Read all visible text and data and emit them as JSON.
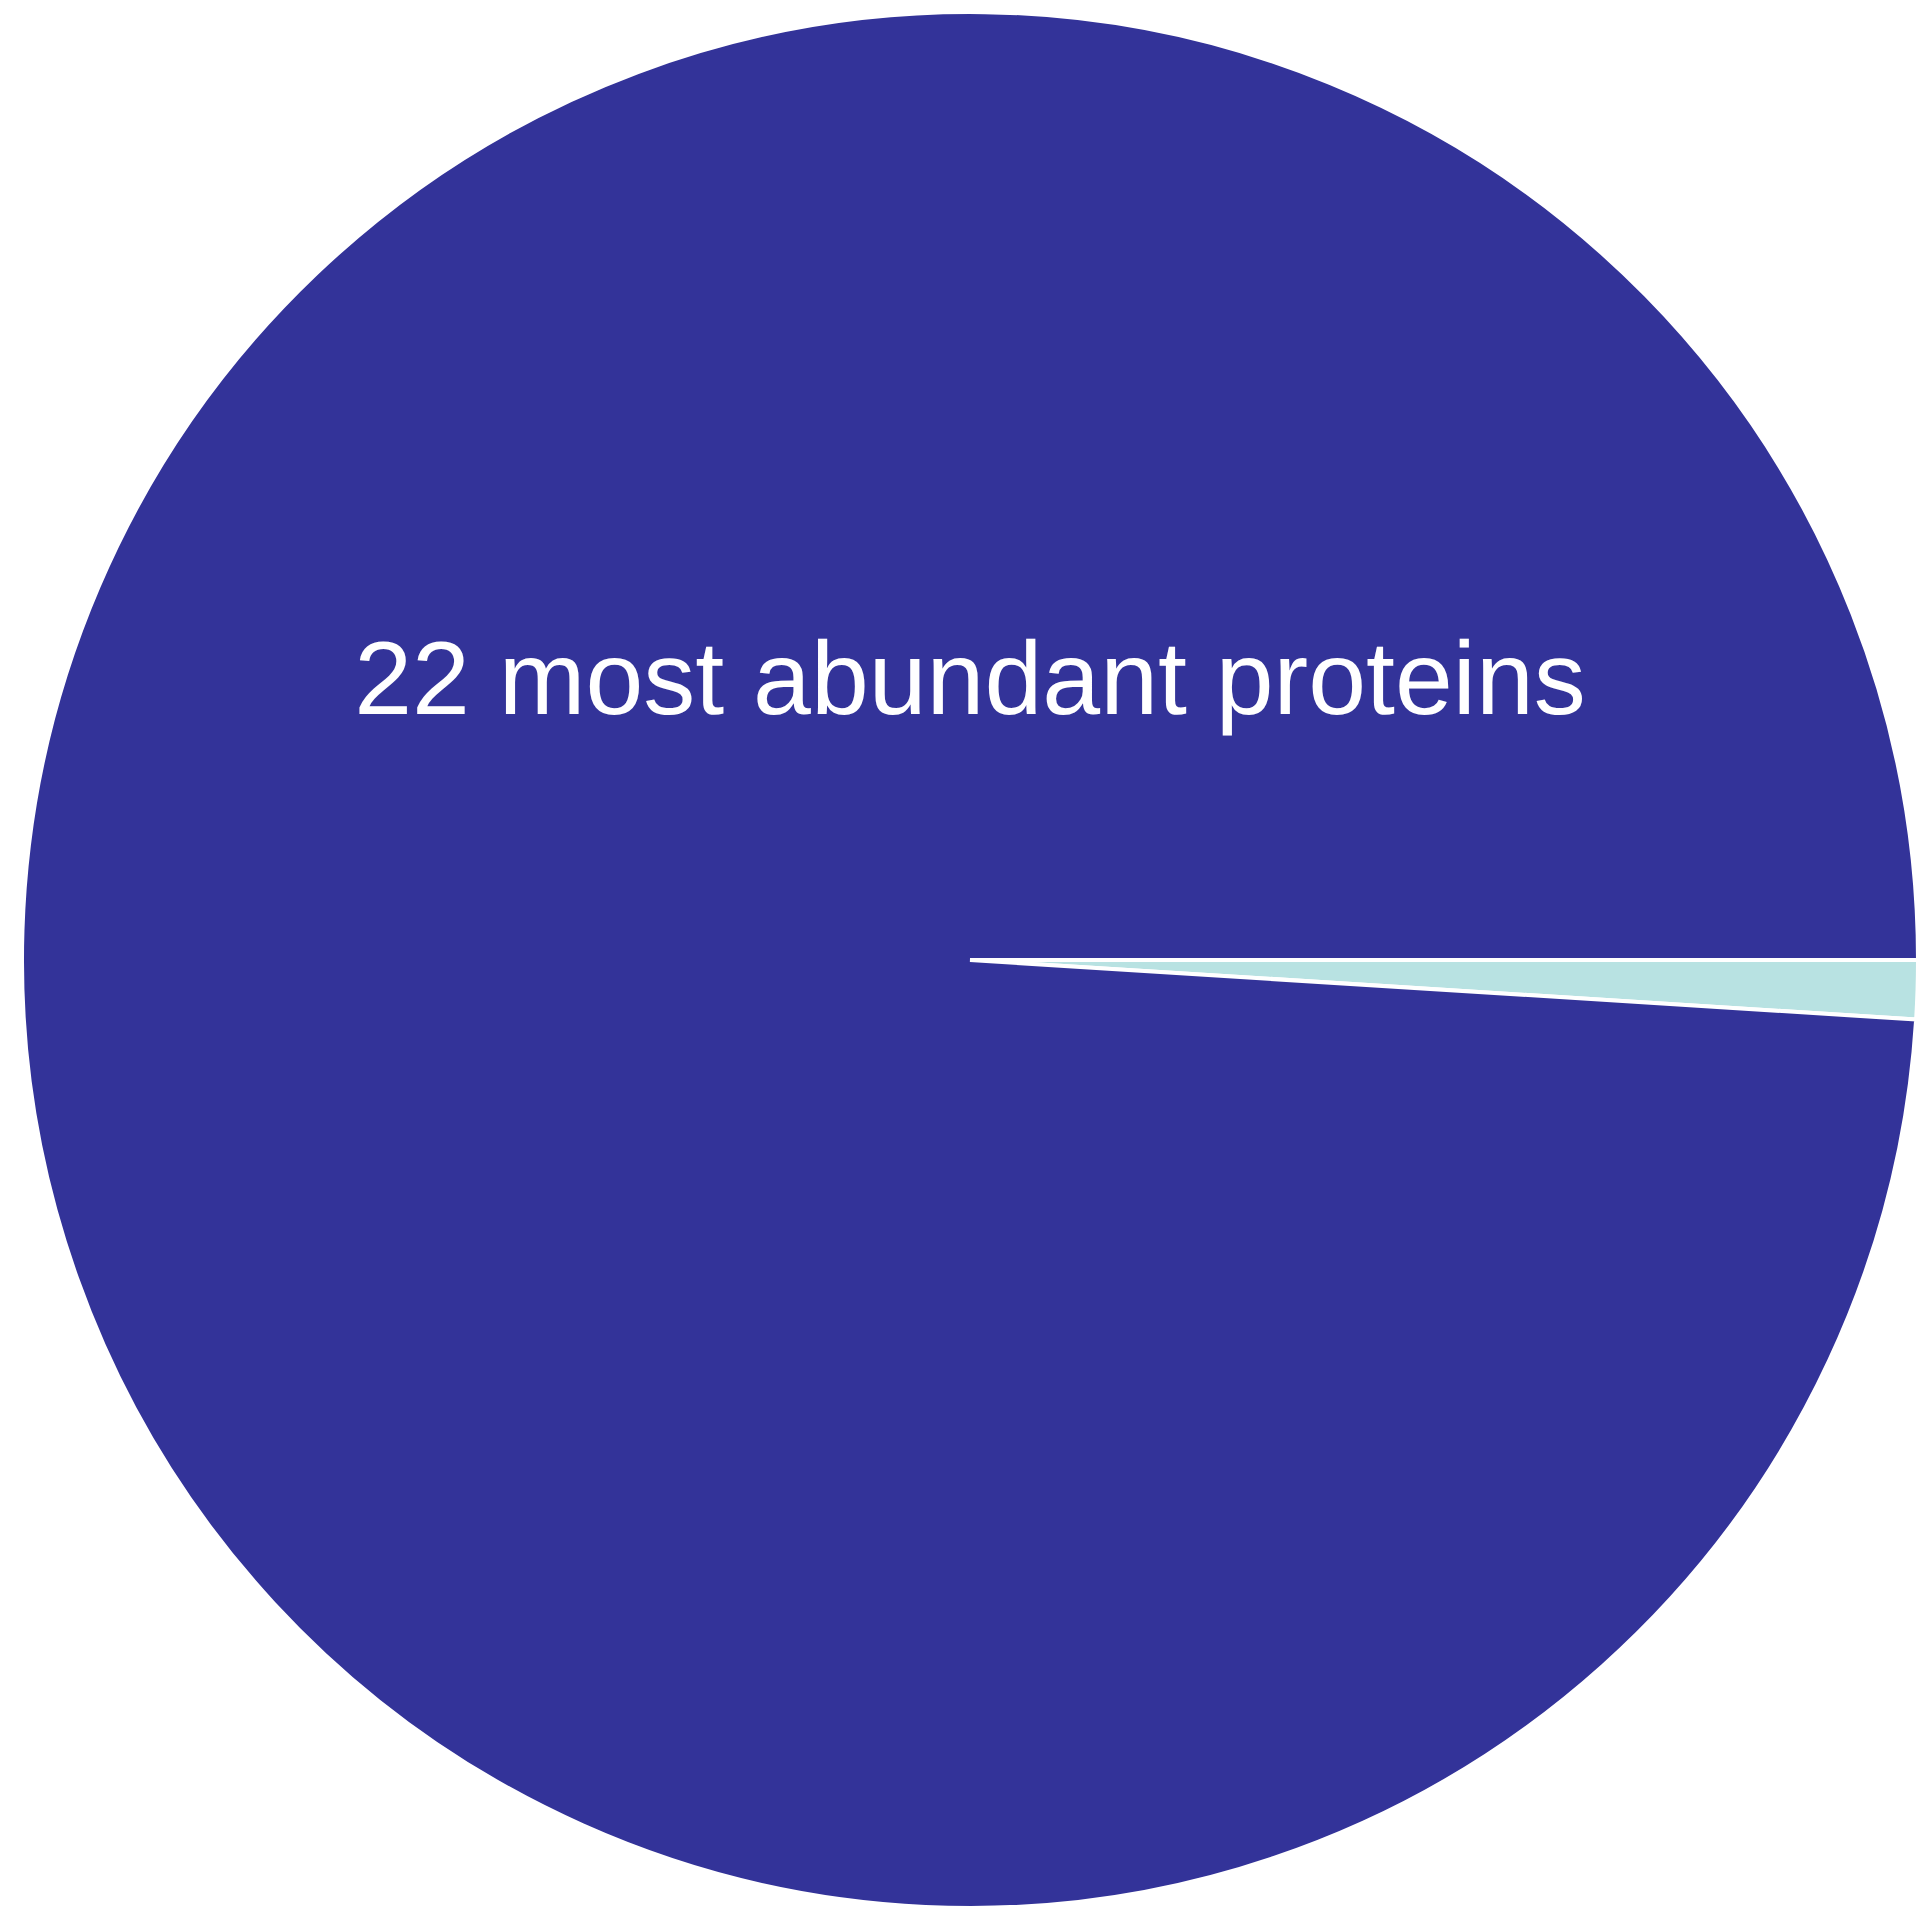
{
  "chart_data": {
    "type": "pie",
    "categories": [
      null,
      "22 most abundant proteins"
    ],
    "values": [
      1,
      99
    ],
    "colors": [
      "#b8e2e2",
      "#333399"
    ]
  }
}
